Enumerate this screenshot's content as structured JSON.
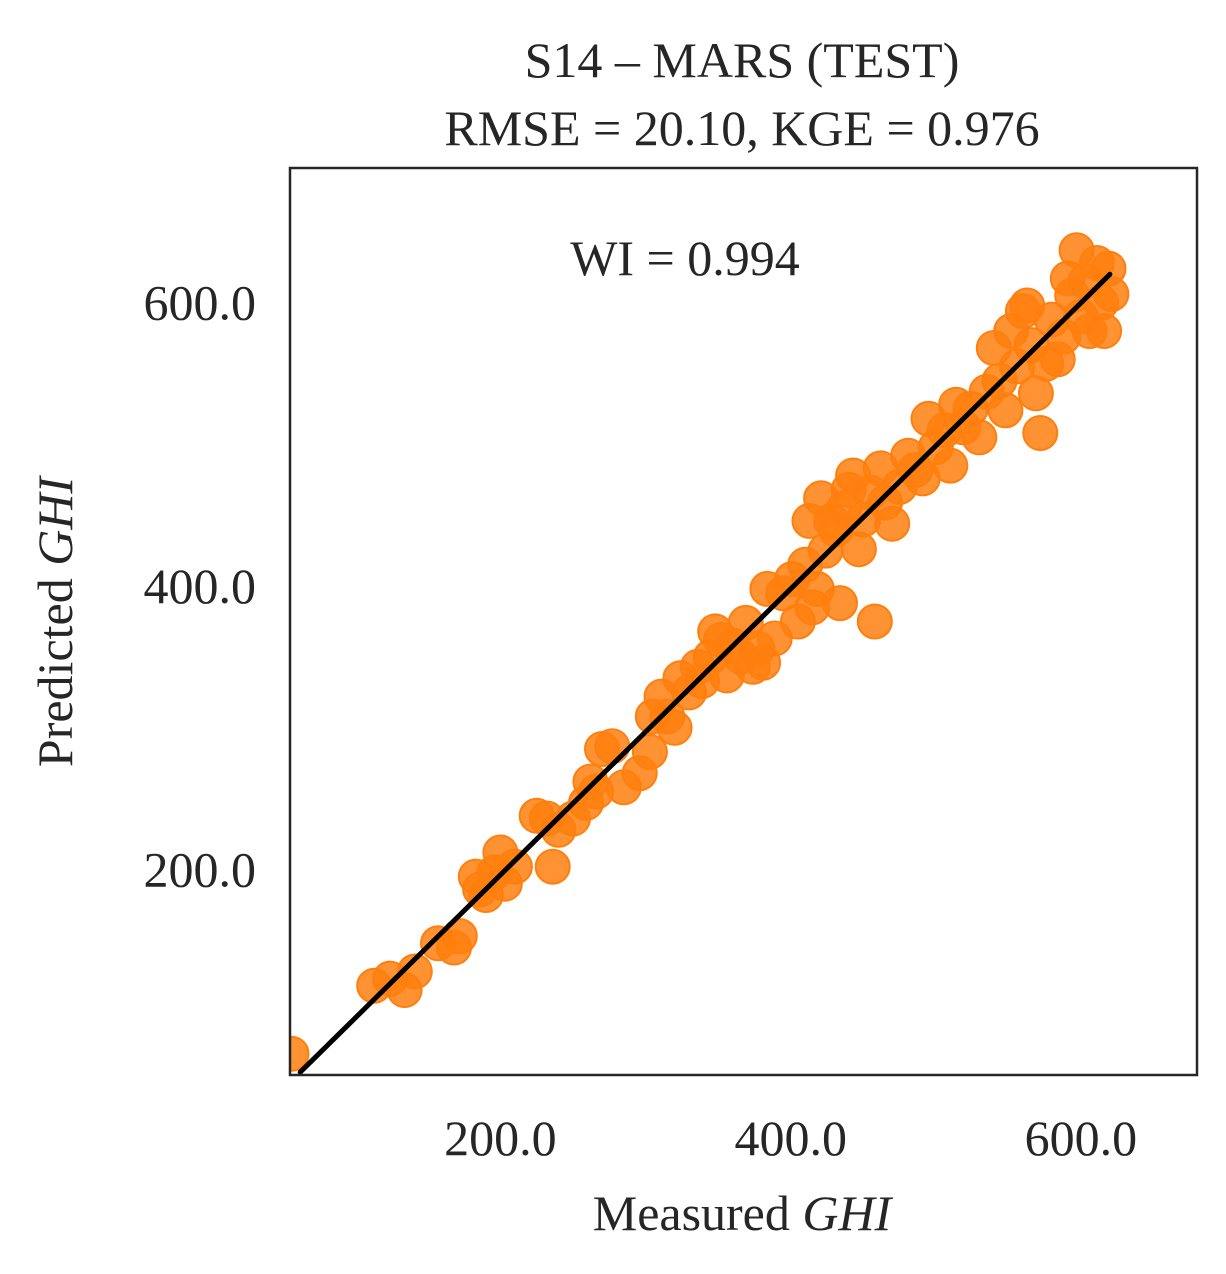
{
  "chart_data": {
    "type": "scatter",
    "title_line1": "S14 – MARS (TEST)",
    "title_line2": "RMSE = 20.10, KGE = 0.976",
    "annotation": "WI = 0.994",
    "xlabel_prefix": "Measured ",
    "xlabel_var": "GHI",
    "ylabel_prefix": "Predicted ",
    "ylabel_var": "GHI",
    "xlim": [
      55,
      680
    ],
    "ylim": [
      55,
      695
    ],
    "xticks": [
      200,
      400,
      600
    ],
    "yticks": [
      200,
      400,
      600
    ],
    "xtick_labels": [
      "200.0",
      "400.0",
      "600.0"
    ],
    "ytick_labels": [
      "200.0",
      "400.0",
      "600.0"
    ],
    "grid": false,
    "marker_color": "#ff7f0e",
    "line_color": "#000000",
    "fit_line": [
      [
        62,
        57
      ],
      [
        620,
        620
      ]
    ],
    "points": [
      [
        56,
        70
      ],
      [
        113,
        118
      ],
      [
        124,
        123
      ],
      [
        134,
        115
      ],
      [
        141,
        128
      ],
      [
        157,
        148
      ],
      [
        168,
        145
      ],
      [
        172,
        153
      ],
      [
        183,
        195
      ],
      [
        186,
        186
      ],
      [
        190,
        182
      ],
      [
        196,
        198
      ],
      [
        200,
        212
      ],
      [
        203,
        190
      ],
      [
        210,
        202
      ],
      [
        225,
        238
      ],
      [
        232,
        236
      ],
      [
        236,
        202
      ],
      [
        240,
        228
      ],
      [
        250,
        236
      ],
      [
        259,
        247
      ],
      [
        262,
        262
      ],
      [
        266,
        255
      ],
      [
        270,
        285
      ],
      [
        277,
        287
      ],
      [
        285,
        258
      ],
      [
        296,
        268
      ],
      [
        303,
        283
      ],
      [
        305,
        308
      ],
      [
        311,
        322
      ],
      [
        315,
        308
      ],
      [
        320,
        300
      ],
      [
        324,
        335
      ],
      [
        330,
        325
      ],
      [
        336,
        343
      ],
      [
        339,
        333
      ],
      [
        345,
        350
      ],
      [
        348,
        368
      ],
      [
        352,
        362
      ],
      [
        356,
        337
      ],
      [
        360,
        358
      ],
      [
        366,
        350
      ],
      [
        369,
        374
      ],
      [
        374,
        343
      ],
      [
        377,
        356
      ],
      [
        381,
        346
      ],
      [
        384,
        398
      ],
      [
        389,
        363
      ],
      [
        395,
        395
      ],
      [
        401,
        405
      ],
      [
        405,
        375
      ],
      [
        410,
        415
      ],
      [
        413,
        446
      ],
      [
        415,
        385
      ],
      [
        418,
        398
      ],
      [
        421,
        462
      ],
      [
        424,
        425
      ],
      [
        428,
        446
      ],
      [
        431,
        440
      ],
      [
        434,
        388
      ],
      [
        437,
        455
      ],
      [
        440,
        468
      ],
      [
        443,
        478
      ],
      [
        447,
        426
      ],
      [
        450,
        447
      ],
      [
        455,
        466
      ],
      [
        458,
        375
      ],
      [
        462,
        483
      ],
      [
        465,
        459
      ],
      [
        470,
        444
      ],
      [
        475,
        470
      ],
      [
        481,
        492
      ],
      [
        486,
        482
      ],
      [
        491,
        476
      ],
      [
        495,
        518
      ],
      [
        500,
        498
      ],
      [
        506,
        510
      ],
      [
        510,
        485
      ],
      [
        514,
        528
      ],
      [
        519,
        512
      ],
      [
        524,
        525
      ],
      [
        530,
        505
      ],
      [
        535,
        537
      ],
      [
        540,
        568
      ],
      [
        544,
        545
      ],
      [
        548,
        524
      ],
      [
        552,
        580
      ],
      [
        556,
        555
      ],
      [
        560,
        594
      ],
      [
        563,
        598
      ],
      [
        566,
        570
      ],
      [
        569,
        536
      ],
      [
        572,
        508
      ],
      [
        576,
        557
      ],
      [
        580,
        588
      ],
      [
        584,
        560
      ],
      [
        588,
        576
      ],
      [
        591,
        617
      ],
      [
        594,
        605
      ],
      [
        597,
        637
      ],
      [
        600,
        590
      ],
      [
        603,
        615
      ],
      [
        606,
        580
      ],
      [
        611,
        628
      ],
      [
        614,
        600
      ],
      [
        616,
        580
      ],
      [
        619,
        624
      ],
      [
        621,
        606
      ]
    ]
  }
}
